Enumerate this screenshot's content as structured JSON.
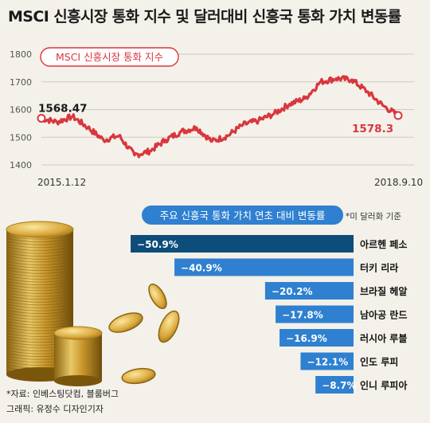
{
  "title": "MSCI 신흥시장 통화 지수 및 달러대비 신흥국 통화 가치 변동률",
  "colors": {
    "line": "#d9363e",
    "bar_top": "#0d4d7a",
    "bar": "#2f80d0",
    "pill_border": "#d9363e",
    "pill2_bg": "#2f80d0"
  },
  "chart_data": [
    {
      "type": "line",
      "title": "MSCI 신흥시장 통화 지수",
      "yticks": [
        "1800",
        "1700",
        "1600",
        "1500",
        "1400"
      ],
      "ylim": [
        1400,
        1800
      ],
      "x_start": "2015.1.12",
      "x_end": "2018.9.10",
      "start_value": 1568.47,
      "start_label": "1568.47",
      "end_value": 1578.3,
      "end_label": "1578.3",
      "grid": true,
      "series": [
        {
          "x": [
            "2015.1",
            "2015.3",
            "2015.5",
            "2015.7",
            "2015.9",
            "2015.11",
            "2016.1",
            "2016.3",
            "2016.5",
            "2016.7",
            "2016.9",
            "2016.11",
            "2017.1",
            "2017.3",
            "2017.5",
            "2017.7",
            "2017.9",
            "2017.11",
            "2018.1",
            "2018.2",
            "2018.3",
            "2018.5",
            "2018.7",
            "2018.9"
          ],
          "values": [
            1568,
            1555,
            1575,
            1535,
            1490,
            1505,
            1435,
            1450,
            1490,
            1520,
            1535,
            1485,
            1505,
            1545,
            1560,
            1585,
            1620,
            1640,
            1700,
            1712,
            1708,
            1665,
            1615,
            1578
          ]
        }
      ]
    },
    {
      "type": "bar",
      "title": "주요 신흥국 통화 가치 연초 대비 변동률",
      "note": "*미 달러화 기준",
      "categories": [
        "아르헨 페소",
        "터키 리라",
        "브라질 헤알",
        "남아공 란드",
        "러시아 루블",
        "인도 루피",
        "인니 루피아"
      ],
      "values": [
        -50.9,
        -40.9,
        -20.2,
        -17.8,
        -16.9,
        -12.1,
        -8.7
      ],
      "labels": [
        "−50.9%",
        "−40.9%",
        "−20.2%",
        "−17.8%",
        "−16.9%",
        "−12.1%",
        "−8.7%"
      ]
    }
  ],
  "source": "*자료: 인베스팅닷컴, 블룸버그",
  "credit": "그래픽: 유정수 디자인기자"
}
